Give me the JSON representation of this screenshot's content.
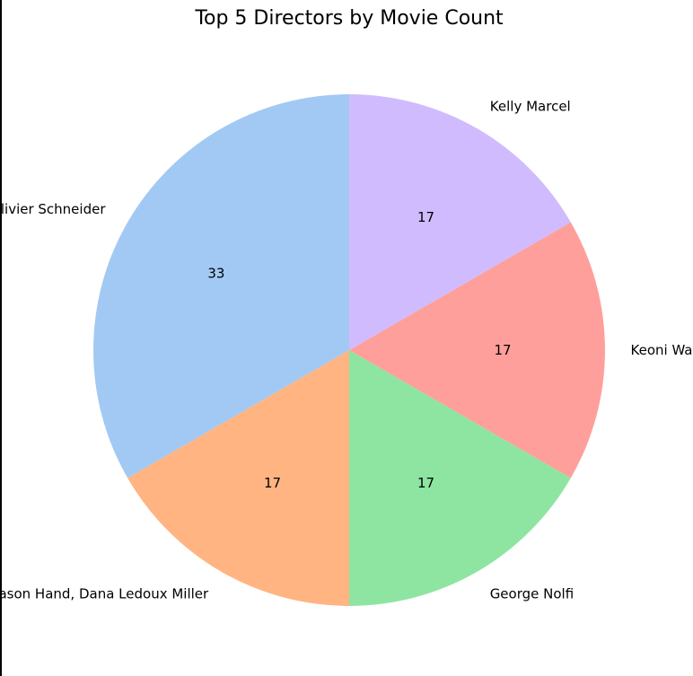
{
  "chart_data": {
    "type": "pie",
    "title": "Top 5 Directors by Movie Count",
    "labels": [
      "Olivier Schneider",
      "David G. Derrick Jr., Jason Hand, Dana Ledoux Miller",
      "George Nolfi",
      "Keoni Waxman",
      "Kelly Marcel"
    ],
    "values": [
      2,
      1,
      1,
      1,
      1
    ],
    "percent_labels": [
      "33",
      "17",
      "17",
      "17",
      "17"
    ],
    "colors": [
      "#a1c9f4",
      "#ffb482",
      "#8de5a1",
      "#ff9f9b",
      "#d0bbff"
    ],
    "start_angle_deg": 90,
    "direction": "counterclockwise",
    "legend": "none"
  }
}
